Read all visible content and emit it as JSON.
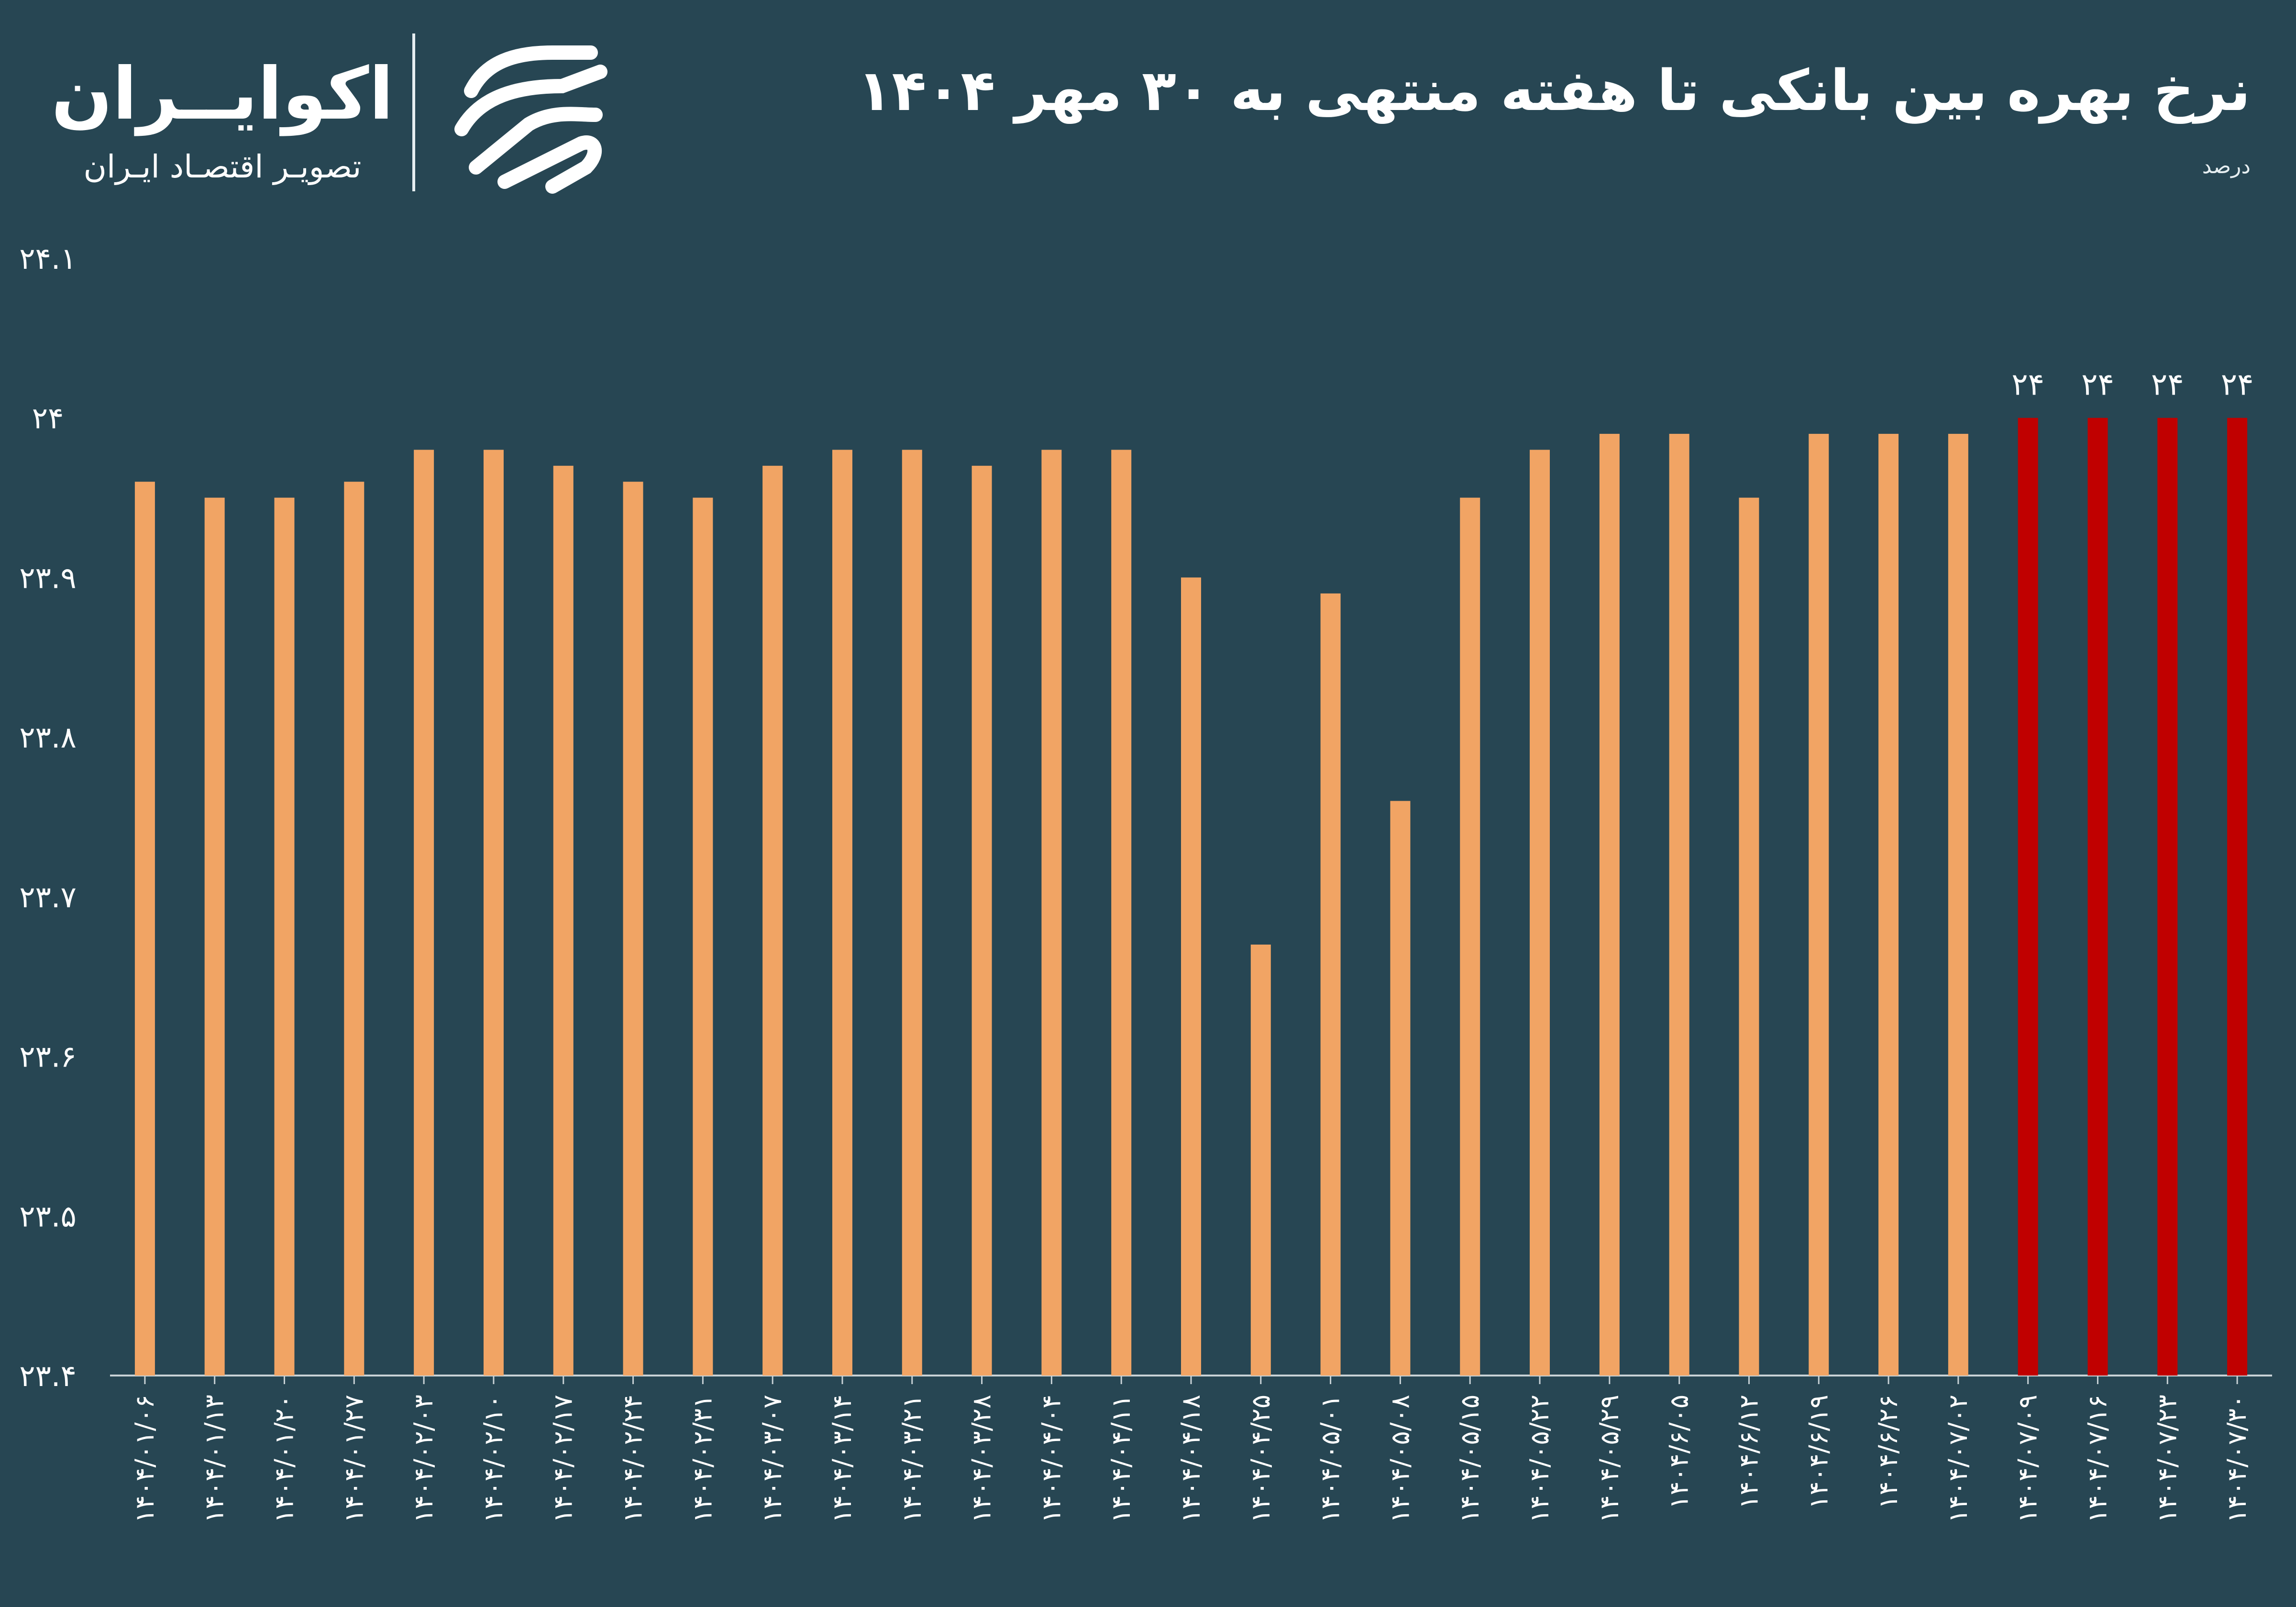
{
  "header": {
    "title": "نرخ بهره بین بانکی تا هفته منتهی به ۳۰ مهر ۱۴۰۴",
    "unit": "درصد"
  },
  "brand": {
    "name": "اکوایــران",
    "tagline": "تصویـر اقتصـاد ایـران",
    "logo": "ecoiran-logo-icon"
  },
  "colors": {
    "background": "#274653",
    "bar": "#F1A464",
    "highlight_bar": "#C00000",
    "text": "#FFFFFF",
    "axis": "#C8D2D6"
  },
  "chart_data": {
    "type": "bar",
    "title": "نرخ بهره بین بانکی تا هفته منتهی به ۳۰ مهر ۱۴۰۴",
    "ylabel": "درصد",
    "xlabel": "",
    "ylim": [
      23.4,
      24.1
    ],
    "y_ticks": [
      "۲۳.۴",
      "۲۳.۵",
      "۲۳.۶",
      "۲۳.۷",
      "۲۳.۸",
      "۲۳.۹",
      "۲۴",
      "۲۴.۱"
    ],
    "grid": false,
    "categories": [
      "۱۴۰۴/۰۱/۰۶",
      "۱۴۰۴/۰۱/۱۳",
      "۱۴۰۴/۰۱/۲۰",
      "۱۴۰۴/۰۱/۲۷",
      "۱۴۰۴/۰۲/۰۳",
      "۱۴۰۴/۰۲/۱۰",
      "۱۴۰۴/۰۲/۱۷",
      "۱۴۰۴/۰۲/۲۴",
      "۱۴۰۴/۰۲/۳۱",
      "۱۴۰۴/۰۳/۰۷",
      "۱۴۰۴/۰۳/۱۴",
      "۱۴۰۴/۰۳/۲۱",
      "۱۴۰۴/۰۳/۲۸",
      "۱۴۰۴/۰۴/۰۴",
      "۱۴۰۴/۰۴/۱۱",
      "۱۴۰۴/۰۴/۱۸",
      "۱۴۰۴/۰۴/۲۵",
      "۱۴۰۴/۰۵/۰۱",
      "۱۴۰۴/۰۵/۰۸",
      "۱۴۰۴/۰۵/۱۵",
      "۱۴۰۴/۰۵/۲۲",
      "۱۴۰۴/۰۵/۲۹",
      "۱۴۰۴/۶/۰۵",
      "۱۴۰۴/۶/۱۲",
      "۱۴۰۴/۶/۱۹",
      "۱۴۰۴/۶/۲۶",
      "۱۴۰۴/۰۷/۰۲",
      "۱۴۰۴/۰۷/۰۹",
      "۱۴۰۴/۰۷/۱۶",
      "۱۴۰۴/۰۷/۲۳",
      "۱۴۰۴/۰۷/۳۰"
    ],
    "values": [
      23.96,
      23.95,
      23.95,
      23.96,
      23.98,
      23.98,
      23.97,
      23.96,
      23.95,
      23.97,
      23.98,
      23.98,
      23.97,
      23.98,
      23.98,
      23.9,
      23.67,
      23.89,
      23.76,
      23.95,
      23.98,
      23.99,
      23.99,
      23.95,
      23.99,
      23.99,
      23.99,
      24.0,
      24.0,
      24.0,
      24.0
    ],
    "highlight": [
      false,
      false,
      false,
      false,
      false,
      false,
      false,
      false,
      false,
      false,
      false,
      false,
      false,
      false,
      false,
      false,
      false,
      false,
      false,
      false,
      false,
      false,
      false,
      false,
      false,
      false,
      false,
      true,
      true,
      true,
      true
    ],
    "data_labels": [
      "",
      "",
      "",
      "",
      "",
      "",
      "",
      "",
      "",
      "",
      "",
      "",
      "",
      "",
      "",
      "",
      "",
      "",
      "",
      "",
      "",
      "",
      "",
      "",
      "",
      "",
      "",
      "۲۴",
      "۲۴",
      "۲۴",
      "۲۴"
    ]
  }
}
